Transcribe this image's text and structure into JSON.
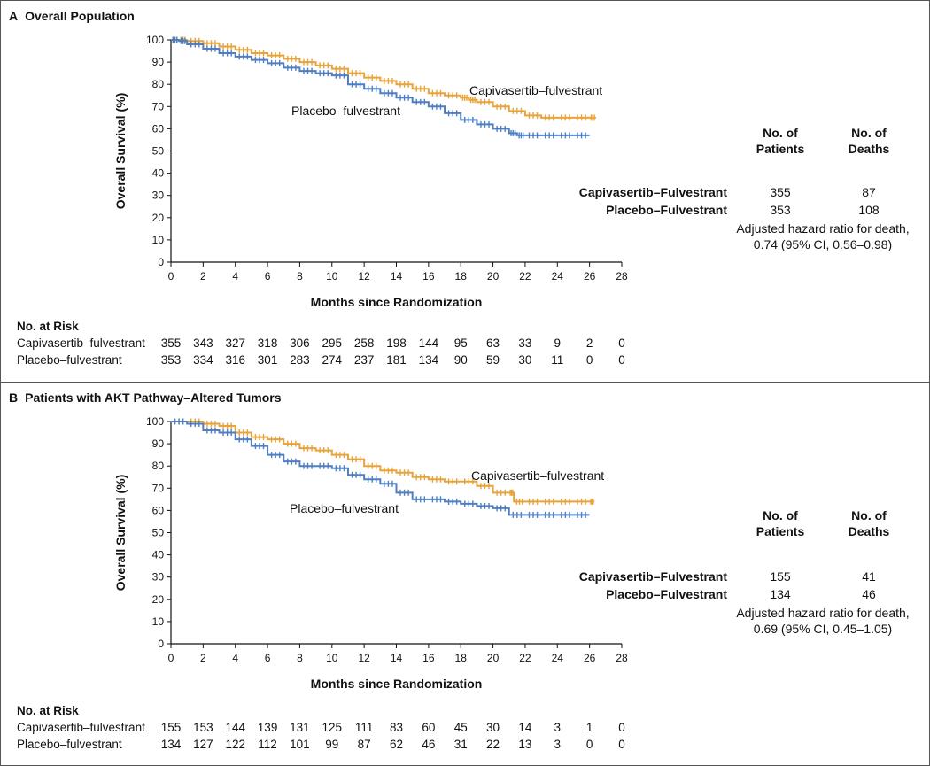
{
  "panels": [
    {
      "letter": "A",
      "title": "Overall Population",
      "summary": {
        "col_patients": "No. of Patients",
        "col_deaths": "No. of Deaths",
        "rows": [
          {
            "name": "Capivasertib–Fulvestrant",
            "patients": "355",
            "deaths": "87"
          },
          {
            "name": "Placebo–Fulvestrant",
            "patients": "353",
            "deaths": "108"
          }
        ],
        "hazard_line1": "Adjusted hazard ratio for death,",
        "hazard_line2": "0.74 (95% CI, 0.56–0.98)"
      },
      "risk_table": {
        "title": "No. at Risk",
        "rows": [
          {
            "name": "Capivasertib–fulvestrant",
            "values": [
              "355",
              "343",
              "327",
              "318",
              "306",
              "295",
              "258",
              "198",
              "144",
              "95",
              "63",
              "33",
              "9",
              "2",
              "0"
            ]
          },
          {
            "name": "Placebo–fulvestrant",
            "values": [
              "353",
              "334",
              "316",
              "301",
              "283",
              "274",
              "237",
              "181",
              "134",
              "90",
              "59",
              "30",
              "11",
              "0",
              "0"
            ]
          }
        ]
      }
    },
    {
      "letter": "B",
      "title": "Patients with AKT Pathway–Altered Tumors",
      "summary": {
        "col_patients": "No. of Patients",
        "col_deaths": "No. of Deaths",
        "rows": [
          {
            "name": "Capivasertib–Fulvestrant",
            "patients": "155",
            "deaths": "41"
          },
          {
            "name": "Placebo–Fulvestrant",
            "patients": "134",
            "deaths": "46"
          }
        ],
        "hazard_line1": "Adjusted hazard ratio for death,",
        "hazard_line2": "0.69 (95% CI, 0.45–1.05)"
      },
      "risk_table": {
        "title": "No. at Risk",
        "rows": [
          {
            "name": "Capivasertib–fulvestrant",
            "values": [
              "155",
              "153",
              "144",
              "139",
              "131",
              "125",
              "111",
              "83",
              "60",
              "45",
              "30",
              "14",
              "3",
              "1",
              "0"
            ]
          },
          {
            "name": "Placebo–fulvestrant",
            "values": [
              "134",
              "127",
              "122",
              "112",
              "101",
              "99",
              "87",
              "62",
              "46",
              "31",
              "22",
              "13",
              "3",
              "0",
              "0"
            ]
          }
        ]
      }
    }
  ],
  "colors": {
    "capivasertib": "#e8a33a",
    "placebo": "#4f7fc2",
    "axis": "#111111"
  },
  "chart_data": [
    {
      "type": "line",
      "title": "Overall Population",
      "xlabel": "Months since Randomization",
      "ylabel": "Overall Survival (%)",
      "xlim": [
        0,
        28
      ],
      "ylim": [
        0,
        100
      ],
      "xticks": [
        0,
        2,
        4,
        6,
        8,
        10,
        12,
        14,
        16,
        18,
        20,
        22,
        24,
        26,
        28
      ],
      "yticks": [
        0,
        10,
        20,
        30,
        40,
        50,
        60,
        70,
        80,
        90,
        100
      ],
      "grid": false,
      "series": [
        {
          "name": "Capivasertib–fulvestrant",
          "color": "#e8a33a",
          "x": [
            0,
            0.5,
            1,
            2,
            3,
            4,
            5,
            6,
            7,
            8,
            9,
            10,
            11,
            12,
            13,
            14,
            15,
            16,
            17,
            18,
            18.5,
            19,
            20,
            21,
            22,
            23,
            24,
            25,
            26,
            26.4
          ],
          "y": [
            100,
            100,
            99.5,
            98.5,
            97,
            95.5,
            94,
            93,
            91.5,
            90,
            88.5,
            87,
            85,
            83,
            81.5,
            80,
            78,
            76,
            75,
            74,
            73,
            72,
            70,
            68,
            66,
            65,
            65,
            65,
            65,
            65
          ]
        },
        {
          "name": "Placebo–fulvestrant",
          "color": "#4f7fc2",
          "x": [
            0,
            0.5,
            1,
            2,
            3,
            4,
            5,
            6,
            7,
            8,
            9,
            10,
            11,
            12,
            13,
            14,
            15,
            16,
            17,
            18,
            19,
            20,
            21,
            21.5,
            22,
            23,
            24,
            25,
            26
          ],
          "y": [
            100,
            99.5,
            98,
            96,
            94,
            92.5,
            91,
            89.5,
            87.5,
            86,
            85,
            84,
            80,
            78,
            76,
            74,
            72,
            70,
            67,
            64,
            62,
            60,
            58,
            57,
            57,
            57,
            57,
            57,
            57
          ]
        }
      ]
    },
    {
      "type": "line",
      "title": "Patients with AKT Pathway–Altered Tumors",
      "xlabel": "Months since Randomization",
      "ylabel": "Overall Survival (%)",
      "xlim": [
        0,
        28
      ],
      "ylim": [
        0,
        100
      ],
      "xticks": [
        0,
        2,
        4,
        6,
        8,
        10,
        12,
        14,
        16,
        18,
        20,
        22,
        24,
        26,
        28
      ],
      "yticks": [
        0,
        10,
        20,
        30,
        40,
        50,
        60,
        70,
        80,
        90,
        100
      ],
      "grid": false,
      "series": [
        {
          "name": "Capivasertib–fulvestrant",
          "color": "#e8a33a",
          "x": [
            0,
            1,
            2,
            3,
            4,
            5,
            6,
            7,
            8,
            9,
            10,
            11,
            12,
            13,
            14,
            15,
            16,
            17,
            18,
            19,
            20,
            21,
            21.3,
            22,
            23,
            24,
            25,
            26,
            26.3
          ],
          "y": [
            100,
            100,
            99,
            98,
            95,
            93,
            92,
            90,
            88,
            87,
            85,
            83,
            80,
            78,
            77,
            75,
            74,
            73,
            73,
            71,
            68,
            68,
            64,
            64,
            64,
            64,
            64,
            64,
            64
          ]
        },
        {
          "name": "Placebo–fulvestrant",
          "color": "#4f7fc2",
          "x": [
            0,
            1,
            2,
            3,
            4,
            5,
            6,
            7,
            8,
            9,
            10,
            11,
            12,
            13,
            14,
            15,
            16,
            17,
            18,
            19,
            20,
            21,
            22,
            23,
            24,
            25,
            26
          ],
          "y": [
            100,
            99,
            96,
            95,
            92,
            89,
            85,
            82,
            80,
            80,
            79,
            76,
            74,
            72,
            68,
            65,
            65,
            64,
            63,
            62,
            61,
            58,
            58,
            58,
            58,
            58,
            58
          ]
        }
      ]
    }
  ]
}
